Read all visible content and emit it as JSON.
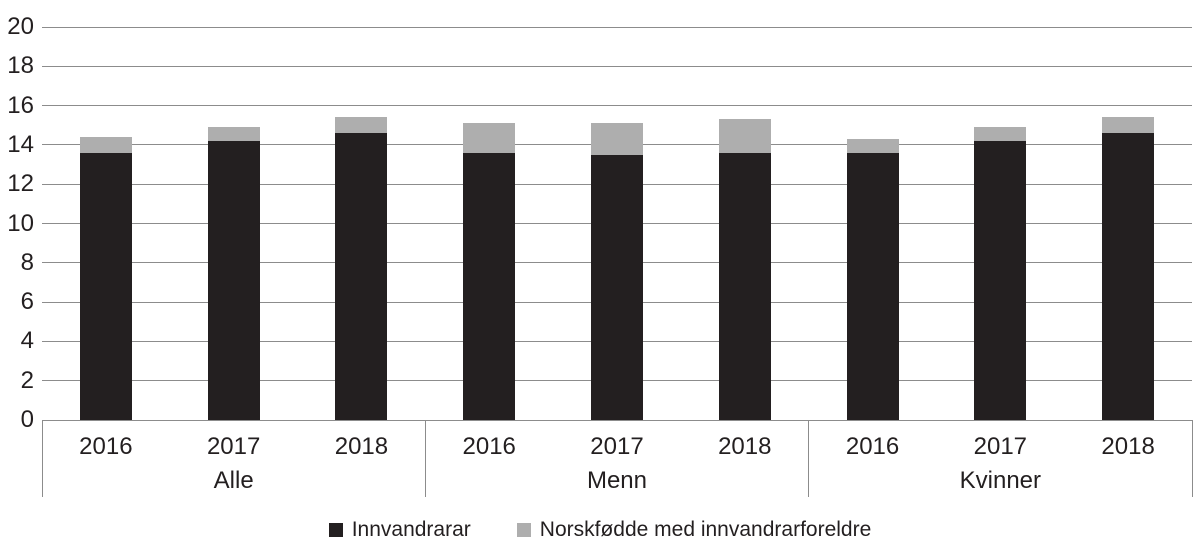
{
  "chart_data": {
    "type": "bar",
    "stacked": true,
    "title": "",
    "xlabel": "",
    "ylabel": "",
    "ylim": [
      0,
      20
    ],
    "yticks": [
      0,
      2,
      4,
      6,
      8,
      10,
      12,
      14,
      16,
      18,
      20
    ],
    "grid": true,
    "legend_position": "bottom",
    "groups": [
      {
        "label": "Alle",
        "categories": [
          "2016",
          "2017",
          "2018"
        ]
      },
      {
        "label": "Menn",
        "categories": [
          "2016",
          "2017",
          "2018"
        ]
      },
      {
        "label": "Kvinner",
        "categories": [
          "2016",
          "2017",
          "2018"
        ]
      }
    ],
    "series": [
      {
        "name": "Innvandrarar",
        "color": "#231f20",
        "values": [
          13.6,
          14.2,
          14.6,
          13.6,
          13.5,
          13.6,
          13.6,
          14.2,
          14.6
        ]
      },
      {
        "name": "Norskfødde med innvandrarforeldre",
        "color": "#aeaeae",
        "values": [
          0.8,
          0.7,
          0.8,
          1.5,
          1.6,
          1.7,
          0.7,
          0.7,
          0.8
        ]
      }
    ]
  },
  "colors": {
    "text": "#231f20",
    "gridline": "#8c8c8c",
    "background": "#ffffff"
  }
}
